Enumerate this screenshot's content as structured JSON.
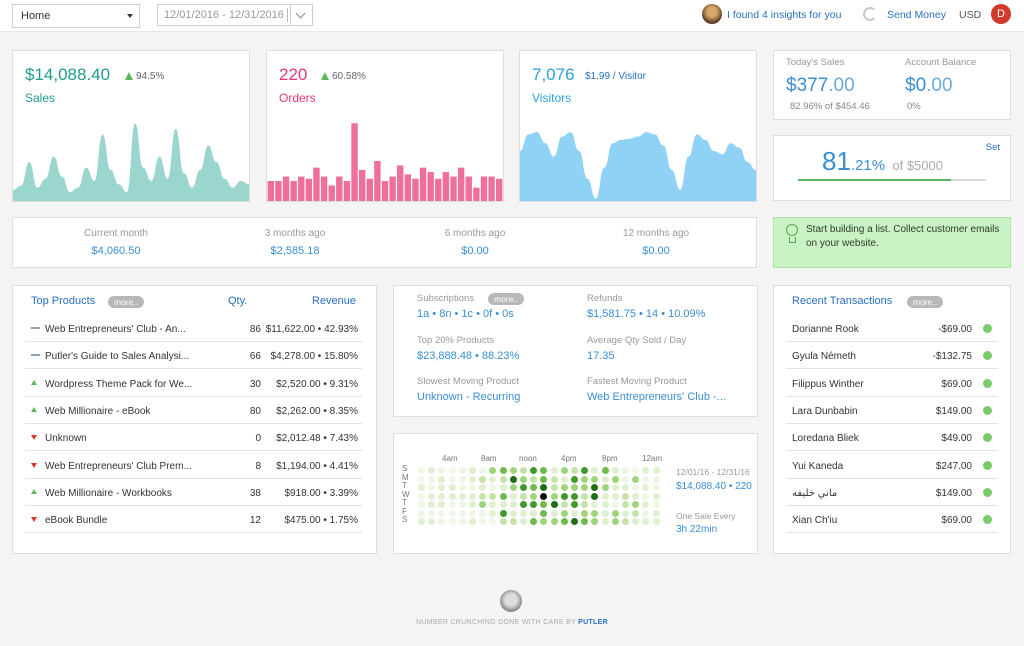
{
  "header": {
    "view_select": "Home",
    "date_start": "12/01/2016",
    "date_end": "12/31/2016",
    "insights": "I found 4 insights for you",
    "send_money": "Send Money",
    "currency": "USD",
    "user_initial": "D"
  },
  "kpis": {
    "sales": {
      "value": "$14,088.40",
      "change": "94.5%",
      "label": "Sales",
      "color": "#1f9c8e"
    },
    "orders": {
      "value": "220",
      "change": "60.58%",
      "label": "Orders",
      "color": "#e5357a"
    },
    "visitors": {
      "value": "7,076",
      "per": "$1.99 / Visitor",
      "label": "Visitors",
      "color": "#2aa3dc"
    }
  },
  "chart_data": [
    {
      "type": "area",
      "series": [
        {
          "values": [
            10,
            14,
            35,
            12,
            20,
            40,
            22,
            8,
            12,
            30,
            18,
            60,
            28,
            15,
            8,
            70,
            30,
            18,
            40,
            20,
            65,
            25,
            12,
            28,
            50,
            35,
            20,
            12,
            18,
            15
          ]
        }
      ]
    },
    {
      "type": "bar",
      "series": [
        {
          "values": [
            18,
            18,
            22,
            18,
            22,
            20,
            30,
            22,
            14,
            22,
            18,
            70,
            28,
            20,
            36,
            18,
            22,
            32,
            24,
            20,
            30,
            26,
            20,
            26,
            22,
            30,
            22,
            12,
            22,
            22,
            20
          ]
        }
      ]
    },
    {
      "type": "area",
      "series": [
        {
          "values": [
            45,
            60,
            62,
            52,
            40,
            58,
            62,
            45,
            20,
            2,
            30,
            52,
            55,
            56,
            58,
            62,
            60,
            50,
            28,
            10,
            40,
            60,
            55,
            45,
            42,
            52,
            48,
            35,
            28
          ]
        }
      ]
    }
  ],
  "today": {
    "label": "Today's Sales",
    "whole": "$377",
    "cents": ".00",
    "sub": "82.96% of $454.46",
    "balance_label": "Account Balance",
    "balance_whole": "$0",
    "balance_cents": ".00",
    "balance_sub": "0%"
  },
  "goal": {
    "set": "Set",
    "int": "81",
    "dec": ".21%",
    "of": "of $5000",
    "progress": 0.8121
  },
  "history": [
    {
      "label": "Current month",
      "value": "$4,060.50"
    },
    {
      "label": "3 months ago",
      "value": "$2,585.18"
    },
    {
      "label": "6 months ago",
      "value": "$0.00"
    },
    {
      "label": "12 months ago",
      "value": "$0.00"
    }
  ],
  "tip": {
    "text": "Start building a list. Collect customer emails on your website."
  },
  "top_products": {
    "title": "Top Products",
    "more": "more..",
    "qty_label": "Qty.",
    "rev_label": "Revenue",
    "rows": [
      {
        "trend": "flat",
        "name": "Web Entrepreneurs' Club - An...",
        "qty": "86",
        "rev": "$11,622.00 • 42.93%"
      },
      {
        "trend": "flat",
        "name": "Putler's Guide to Sales Analysi...",
        "qty": "66",
        "rev": "$4,278.00 • 15.80%"
      },
      {
        "trend": "up",
        "name": "Wordpress Theme Pack for We...",
        "qty": "30",
        "rev": "$2,520.00 • 9.31%"
      },
      {
        "trend": "up",
        "name": "Web Millionaire - eBook",
        "qty": "80",
        "rev": "$2,262.00 • 8.35%"
      },
      {
        "trend": "down",
        "name": "Unknown",
        "qty": "0",
        "rev": "$2,012.48 • 7.43%"
      },
      {
        "trend": "down",
        "name": "Web Entrepreneurs' Club Prem...",
        "qty": "8",
        "rev": "$1,194.00 • 4.41%"
      },
      {
        "trend": "up",
        "name": "Web Millionaire - Workbooks",
        "qty": "38",
        "rev": "$918.00 • 3.39%"
      },
      {
        "trend": "down",
        "name": "eBook Bundle",
        "qty": "12",
        "rev": "$475.00 • 1.75%"
      }
    ]
  },
  "stats": {
    "subs_label": "Subscriptions",
    "subs_more": "more..",
    "subs_value": "1a • 8n • 1c • 0f • 0s",
    "refunds_label": "Refunds",
    "refunds_value": "$1,581.75 • 14 • 10.09%",
    "top20_label": "Top 20% Products",
    "top20_value": "$23,888.48 • 88.23%",
    "avgqty_label": "Average Qty Sold / Day",
    "avgqty_value": "17.35",
    "slow_label": "Slowest Moving Product",
    "slow_value": "Unknown - Recurring",
    "fast_label": "Fastest Moving Product",
    "fast_value": "Web Entrepreneurs' Club -..."
  },
  "heatmap": {
    "hours": [
      "4am",
      "8am",
      "noon",
      "4pm",
      "8pm",
      "12am"
    ],
    "days": [
      "S",
      "M",
      "T",
      "W",
      "T",
      "F",
      "S"
    ],
    "range": "12/01/16 - 12/31/16",
    "range_value": "$14,088.40 • 220",
    "every_label": "One Sale Every",
    "every_value": "3h 22min"
  },
  "transactions": {
    "title": "Recent Transactions",
    "more": "more..",
    "rows": [
      {
        "name": "Dorianne Rook",
        "amount": "-$69.00"
      },
      {
        "name": "Gyula Németh",
        "amount": "-$132.75"
      },
      {
        "name": "Filippus Winther",
        "amount": "$69.00"
      },
      {
        "name": "Lara Dunbabin",
        "amount": "$149.00"
      },
      {
        "name": "Loredana Bliek",
        "amount": "$49.00"
      },
      {
        "name": "Yui Kaneda",
        "amount": "$247.00"
      },
      {
        "name": "ماني خليفه",
        "amount": "$149.00"
      },
      {
        "name": "Xian Ch'iu",
        "amount": "$69.00"
      }
    ]
  },
  "footer": {
    "text": "NUMBER CRUNCHING DONE WITH CARE BY",
    "brand": "PUTLER"
  }
}
